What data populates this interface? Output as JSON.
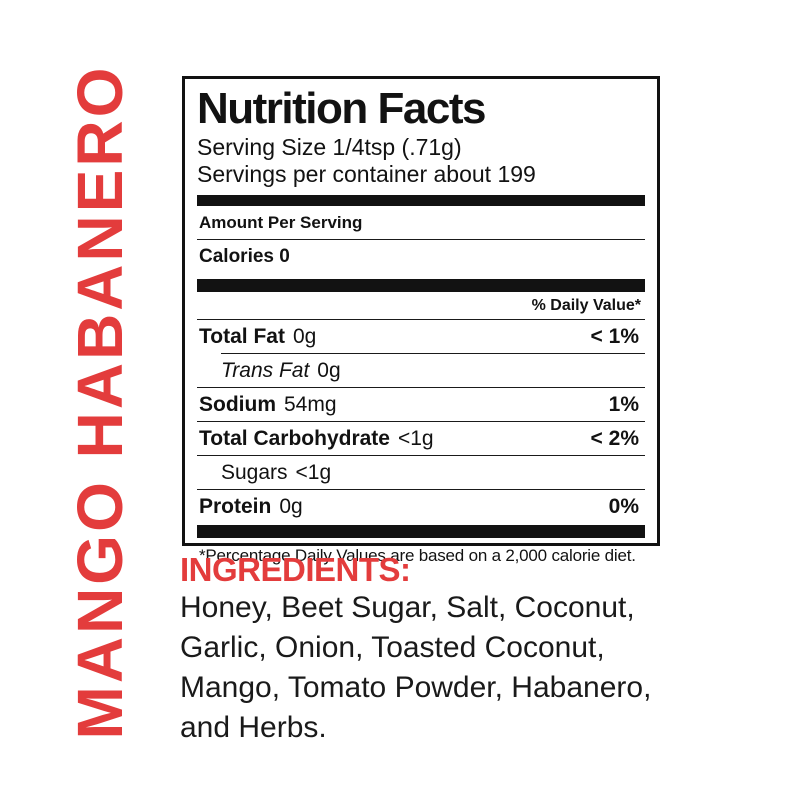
{
  "side_label": {
    "text": "MANGO HABANERO",
    "color": "#e33c3c"
  },
  "nutrition_facts": {
    "title": "Nutrition Facts",
    "serving_size": "Serving Size 1/4tsp (.71g)",
    "servings_per_container": "Servings per container about 199",
    "amount_per_serving": "Amount Per Serving",
    "calories": "Calories 0",
    "daily_value_header": "% Daily Value*",
    "rows": [
      {
        "label": "Total Fat",
        "amount": "0g",
        "dv": "< 1%",
        "bold": true,
        "italic": false,
        "indent": false,
        "sep": "full"
      },
      {
        "label": "Trans Fat",
        "amount": "0g",
        "dv": "",
        "bold": false,
        "italic": true,
        "indent": true,
        "sep": "indent"
      },
      {
        "label": "Sodium",
        "amount": "54mg",
        "dv": "1%",
        "bold": true,
        "italic": false,
        "indent": false,
        "sep": "full"
      },
      {
        "label": "Total Carbohydrate",
        "amount": "<1g",
        "dv": "< 2%",
        "bold": true,
        "italic": false,
        "indent": false,
        "sep": "full"
      },
      {
        "label": "Sugars",
        "amount": "<1g",
        "dv": "",
        "bold": false,
        "italic": false,
        "indent": true,
        "sep": "full"
      },
      {
        "label": "Protein",
        "amount": "0g",
        "dv": "0%",
        "bold": true,
        "italic": false,
        "indent": false,
        "sep": "full"
      }
    ],
    "footnote": "*Percentage Daily Values are based on a 2,000 calorie diet."
  },
  "ingredients": {
    "heading": "INGREDIENTS:",
    "heading_color": "#e33c3c",
    "lines": [
      "Honey, Beet Sugar, Salt, Coconut,",
      "Garlic, Onion, Toasted Coconut,",
      "Mango, Tomato Powder, Habanero,",
      "and Herbs."
    ]
  }
}
